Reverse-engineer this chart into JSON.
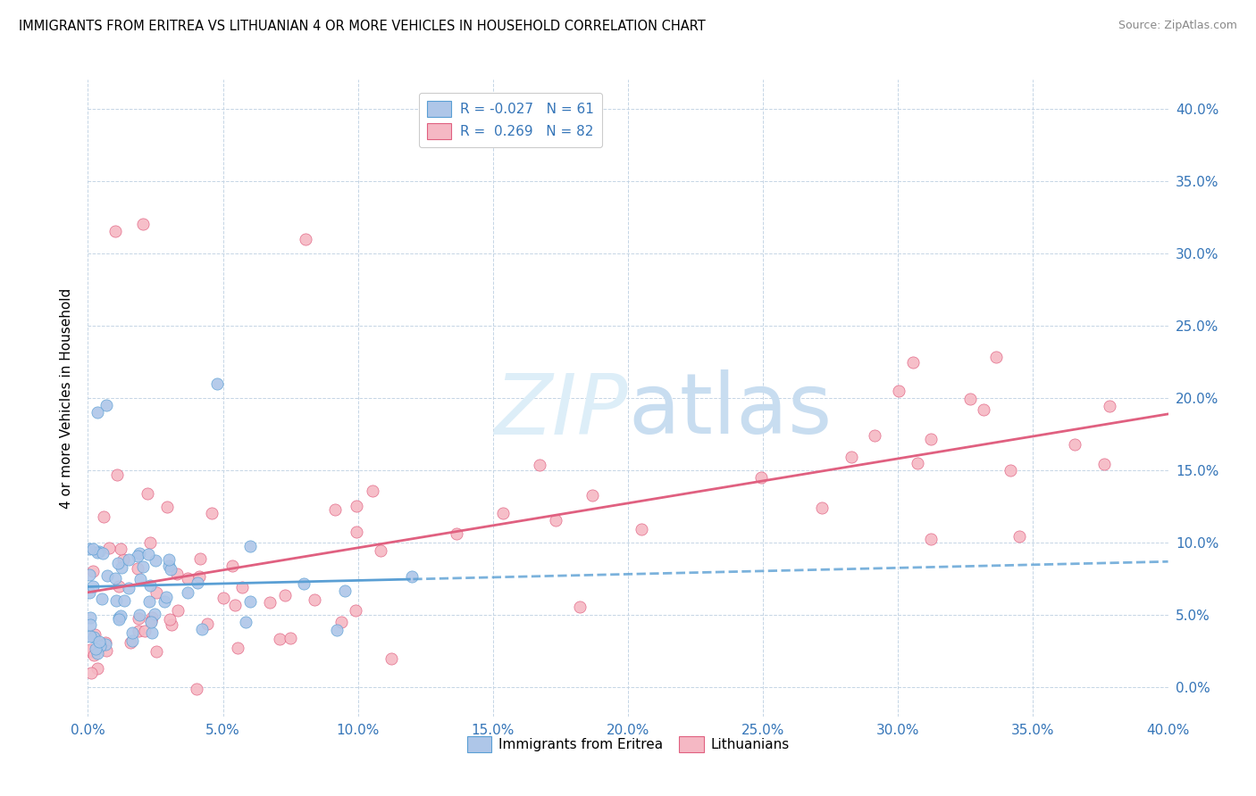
{
  "title": "IMMIGRANTS FROM ERITREA VS LITHUANIAN 4 OR MORE VEHICLES IN HOUSEHOLD CORRELATION CHART",
  "source": "Source: ZipAtlas.com",
  "ylabel": "4 or more Vehicles in Household",
  "xlim": [
    0.0,
    0.4
  ],
  "ylim": [
    -0.02,
    0.42
  ],
  "xtick_vals": [
    0.0,
    0.05,
    0.1,
    0.15,
    0.2,
    0.25,
    0.3,
    0.35,
    0.4
  ],
  "ytick_vals": [
    0.0,
    0.05,
    0.1,
    0.15,
    0.2,
    0.25,
    0.3,
    0.35,
    0.4
  ],
  "tick_labels": [
    "0.0%",
    "5.0%",
    "10.0%",
    "15.0%",
    "20.0%",
    "25.0%",
    "30.0%",
    "35.0%",
    "40.0%"
  ],
  "blue_R": -0.027,
  "blue_N": 61,
  "pink_R": 0.269,
  "pink_N": 82,
  "blue_fill": "#aec6e8",
  "pink_fill": "#f5b8c4",
  "blue_edge": "#5a9fd4",
  "pink_edge": "#e06080",
  "blue_line": "#5a9fd4",
  "pink_line": "#e06080",
  "watermark_color": "#ddeef8",
  "legend_label_blue": "Immigrants from Eritrea",
  "legend_label_pink": "Lithuanians",
  "blue_x": [
    0.001,
    0.001,
    0.001,
    0.001,
    0.001,
    0.002,
    0.002,
    0.002,
    0.002,
    0.002,
    0.003,
    0.003,
    0.003,
    0.003,
    0.004,
    0.004,
    0.004,
    0.005,
    0.005,
    0.005,
    0.006,
    0.006,
    0.007,
    0.007,
    0.008,
    0.008,
    0.009,
    0.01,
    0.01,
    0.011,
    0.012,
    0.013,
    0.015,
    0.016,
    0.018,
    0.02,
    0.022,
    0.024,
    0.026,
    0.028,
    0.03,
    0.032,
    0.035,
    0.038,
    0.04,
    0.045,
    0.05,
    0.055,
    0.06,
    0.07,
    0.08,
    0.09,
    0.1,
    0.11,
    0.12,
    0.001,
    0.002,
    0.003,
    0.004,
    0.005,
    0.006
  ],
  "blue_y": [
    0.05,
    0.055,
    0.06,
    0.065,
    0.07,
    0.05,
    0.055,
    0.06,
    0.065,
    0.07,
    0.05,
    0.055,
    0.06,
    0.04,
    0.05,
    0.055,
    0.06,
    0.05,
    0.055,
    0.06,
    0.05,
    0.055,
    0.05,
    0.055,
    0.05,
    0.055,
    0.05,
    0.05,
    0.055,
    0.05,
    0.05,
    0.05,
    0.05,
    0.05,
    0.05,
    0.055,
    0.055,
    0.055,
    0.055,
    0.055,
    0.06,
    0.055,
    0.055,
    0.055,
    0.055,
    0.055,
    0.055,
    0.055,
    0.055,
    0.055,
    0.055,
    0.055,
    0.055,
    0.055,
    0.055,
    0.21,
    0.195,
    0.18,
    0.175,
    0.185,
    0.02
  ],
  "pink_x": [
    0.001,
    0.002,
    0.003,
    0.004,
    0.005,
    0.006,
    0.007,
    0.008,
    0.009,
    0.01,
    0.011,
    0.012,
    0.013,
    0.014,
    0.015,
    0.016,
    0.017,
    0.018,
    0.019,
    0.02,
    0.022,
    0.024,
    0.026,
    0.028,
    0.03,
    0.032,
    0.035,
    0.038,
    0.04,
    0.045,
    0.05,
    0.055,
    0.06,
    0.065,
    0.07,
    0.075,
    0.08,
    0.09,
    0.095,
    0.1,
    0.11,
    0.12,
    0.13,
    0.14,
    0.15,
    0.16,
    0.17,
    0.18,
    0.19,
    0.2,
    0.21,
    0.22,
    0.23,
    0.24,
    0.25,
    0.26,
    0.27,
    0.28,
    0.29,
    0.3,
    0.32,
    0.34,
    0.35,
    0.002,
    0.003,
    0.004,
    0.005,
    0.006,
    0.007,
    0.008,
    0.01,
    0.012,
    0.015,
    0.018,
    0.02,
    0.025,
    0.03,
    0.035,
    0.04,
    0.045,
    0.05,
    0.06
  ],
  "pink_y": [
    0.06,
    0.065,
    0.055,
    0.06,
    0.065,
    0.06,
    0.065,
    0.06,
    0.065,
    0.07,
    0.065,
    0.07,
    0.065,
    0.07,
    0.075,
    0.07,
    0.075,
    0.08,
    0.075,
    0.08,
    0.08,
    0.085,
    0.08,
    0.085,
    0.09,
    0.085,
    0.09,
    0.095,
    0.095,
    0.1,
    0.1,
    0.105,
    0.1,
    0.105,
    0.11,
    0.115,
    0.115,
    0.12,
    0.125,
    0.12,
    0.12,
    0.13,
    0.13,
    0.135,
    0.135,
    0.14,
    0.14,
    0.145,
    0.15,
    0.155,
    0.155,
    0.155,
    0.16,
    0.16,
    0.165,
    0.165,
    0.16,
    0.165,
    0.17,
    0.175,
    0.17,
    0.175,
    0.175,
    0.16,
    0.155,
    0.165,
    0.17,
    0.165,
    0.17,
    0.175,
    0.18,
    0.175,
    0.17,
    0.185,
    0.18,
    0.175,
    0.185,
    0.19,
    0.195,
    0.19,
    0.03,
    0.04
  ]
}
